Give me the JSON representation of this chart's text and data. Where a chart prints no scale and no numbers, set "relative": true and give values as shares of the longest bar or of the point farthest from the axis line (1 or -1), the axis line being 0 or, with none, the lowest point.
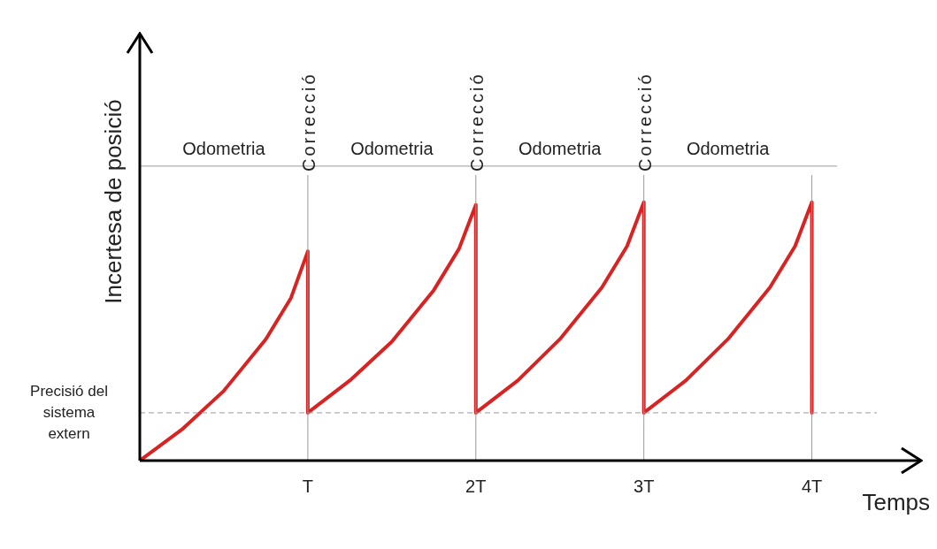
{
  "chart_data": {
    "type": "line",
    "relative": true,
    "xlabel": "Temps",
    "ylabel": "Incertesa de posició",
    "xlim": [
      0,
      4.65
    ],
    "xticks": [
      {
        "value": 1,
        "label": "T"
      },
      {
        "value": 2,
        "label": "2T"
      },
      {
        "value": 3,
        "label": "3T"
      },
      {
        "value": 4,
        "label": "4T"
      }
    ],
    "grid": false,
    "legend": false,
    "marker": "none",
    "line_style": "solid",
    "series": [
      {
        "color": "#d92323",
        "x": [
          0,
          0.25,
          0.5,
          0.75,
          0.9,
          1,
          1,
          1.25,
          1.5,
          1.75,
          1.9,
          2,
          2,
          2.25,
          2.5,
          2.75,
          2.9,
          3,
          3,
          3.25,
          3.5,
          3.75,
          3.9,
          4,
          4
        ],
        "values": [
          0,
          0.12,
          0.27,
          0.47,
          0.63,
          0.81,
          0.185,
          0.31,
          0.46,
          0.66,
          0.82,
          0.99,
          0.185,
          0.31,
          0.47,
          0.67,
          0.83,
          1,
          0.185,
          0.31,
          0.47,
          0.67,
          0.83,
          1,
          0.185
        ]
      }
    ],
    "ref_lines": [
      {
        "axis": "y",
        "value": 0.185,
        "label": "Precisió del sistema extern",
        "color": "#9a9aa8",
        "line_style": "dashed"
      },
      {
        "axis": "y",
        "value": 1.14,
        "label": null,
        "color": "#9a9a9a",
        "line_style": "solid"
      },
      {
        "axis": "x",
        "value": 1,
        "label": "Correcció",
        "color": "#9a9a9a",
        "line_style": "solid"
      },
      {
        "axis": "x",
        "value": 2,
        "label": "Correcció",
        "color": "#9a9a9a",
        "line_style": "solid"
      },
      {
        "axis": "x",
        "value": 3,
        "label": "Correcció",
        "color": "#9a9a9a",
        "line_style": "solid"
      },
      {
        "axis": "x",
        "value": 4,
        "label": null,
        "color": "#9a9a9a",
        "line_style": "solid"
      }
    ],
    "annotations": [
      "Odometria",
      "Odometria",
      "Odometria",
      "Odometria"
    ]
  }
}
